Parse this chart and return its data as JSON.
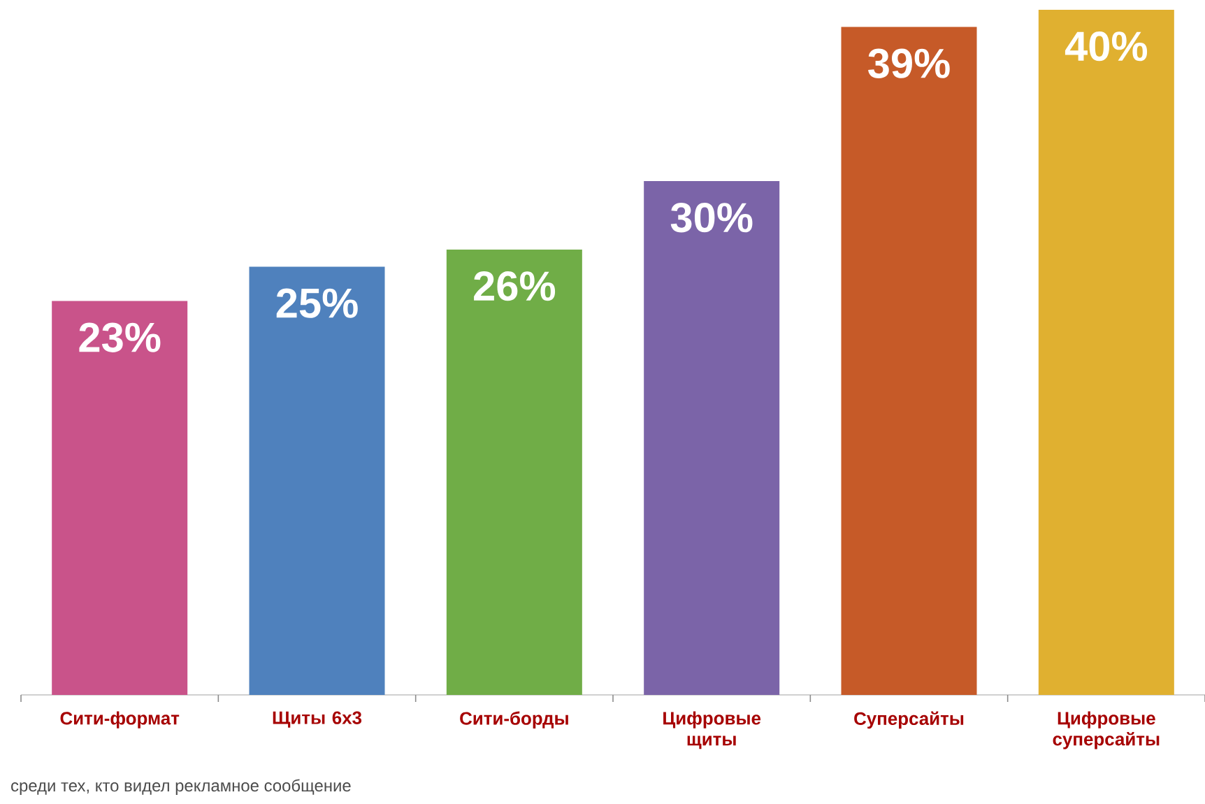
{
  "chart_data": {
    "type": "bar",
    "categories": [
      "Сити-формат",
      "Щиты 6х3",
      "Сити-борды",
      "Цифровые щиты",
      "Суперсайты",
      "Цифровые суперсайты"
    ],
    "values": [
      23,
      25,
      26,
      30,
      39,
      40
    ],
    "value_labels": [
      "23%",
      "25%",
      "26%",
      "30%",
      "39%",
      "40%"
    ],
    "colors": [
      "#c9538a",
      "#4f81bd",
      "#70ad47",
      "#7b64a8",
      "#c65a28",
      "#e0b030"
    ],
    "annotations": [
      "среди тех, кто видел рекламное сообщение"
    ]
  }
}
